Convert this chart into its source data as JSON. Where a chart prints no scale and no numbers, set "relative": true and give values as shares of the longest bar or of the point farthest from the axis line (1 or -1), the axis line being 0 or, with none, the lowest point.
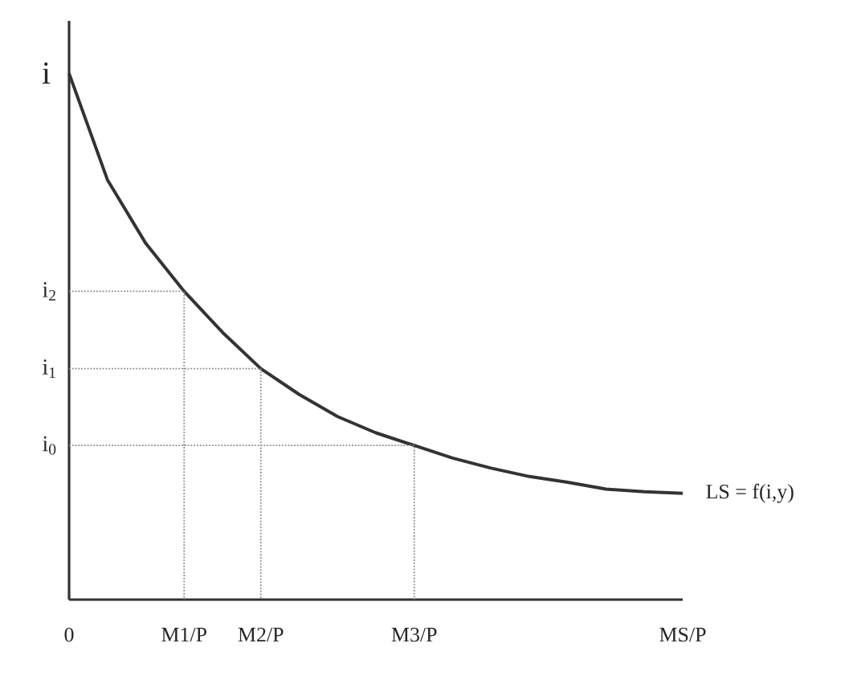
{
  "chart_data": {
    "type": "line",
    "ylabel": "i",
    "relative": true,
    "categories": [
      "0",
      null,
      null,
      "M1/P",
      null,
      "M2/P",
      null,
      null,
      null,
      "M3/P",
      null,
      null,
      null,
      null,
      null,
      null,
      "MS/P"
    ],
    "annotations": [
      "i$_{2}$",
      "i$_{1}$",
      "i$_{0}$"
    ],
    "series": [
      {
        "name": "LS = f(i,y)",
        "color": "#333333",
        "values": [
          1,
          0.798,
          0.677,
          0.586,
          0.508,
          0.439,
          0.39,
          0.348,
          0.317,
          0.293,
          0.269,
          0.25,
          0.234,
          0.223,
          0.21,
          0.205,
          0.202
        ]
      },
      {
        "color": "#8a8a8a",
        "line_style": "dotted",
        "x": [
          "0",
          "M1/P",
          "M1/P"
        ],
        "values": [
          0.586,
          0.586,
          0
        ]
      },
      {
        "color": "#8a8a8a",
        "line_style": "dotted",
        "x": [
          "0",
          "M2/P",
          "M2/P"
        ],
        "values": [
          0.439,
          0.439,
          0
        ]
      },
      {
        "color": "#8a8a8a",
        "line_style": "dotted",
        "x": [
          "0",
          "M3/P",
          "M3/P"
        ],
        "values": [
          0.293,
          0.293,
          0
        ]
      }
    ]
  }
}
